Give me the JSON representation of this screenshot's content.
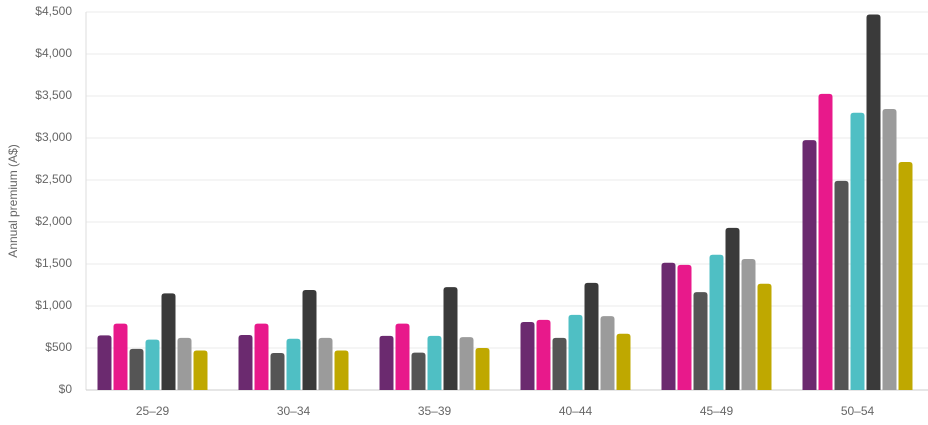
{
  "chart_data": {
    "type": "bar",
    "ylabel": "Annual premium (A$)",
    "categories": [
      "25–29",
      "30–34",
      "35–39",
      "40–44",
      "45–49",
      "50–54"
    ],
    "series": [
      {
        "color": "#6b2a6f",
        "values": [
          650,
          655,
          645,
          810,
          1515,
          2975
        ]
      },
      {
        "color": "#e8198b",
        "values": [
          790,
          790,
          790,
          835,
          1490,
          3525
        ]
      },
      {
        "color": "#555555",
        "values": [
          490,
          440,
          445,
          620,
          1165,
          2490
        ]
      },
      {
        "color": "#4fbfc4",
        "values": [
          600,
          610,
          645,
          895,
          1610,
          3300
        ]
      },
      {
        "color": "#3a3a3a",
        "values": [
          1150,
          1190,
          1225,
          1275,
          1930,
          4470
        ]
      },
      {
        "color": "#9b9b9b",
        "values": [
          620,
          620,
          630,
          880,
          1560,
          3345
        ]
      },
      {
        "color": "#bfa800",
        "values": [
          470,
          470,
          500,
          670,
          1265,
          2715
        ]
      }
    ],
    "ylim": [
      0,
      4500
    ],
    "yticks": [
      {
        "value": 0,
        "label": "$0"
      },
      {
        "value": 500,
        "label": "$500"
      },
      {
        "value": 1000,
        "label": "$1,000"
      },
      {
        "value": 1500,
        "label": "$1,500"
      },
      {
        "value": 2000,
        "label": "$2,000"
      },
      {
        "value": 2500,
        "label": "$2,500"
      },
      {
        "value": 3000,
        "label": "$3,000"
      },
      {
        "value": 3500,
        "label": "$3,500"
      },
      {
        "value": 4000,
        "label": "$4,000"
      },
      {
        "value": 4500,
        "label": "$4,500"
      }
    ],
    "grid": true
  }
}
